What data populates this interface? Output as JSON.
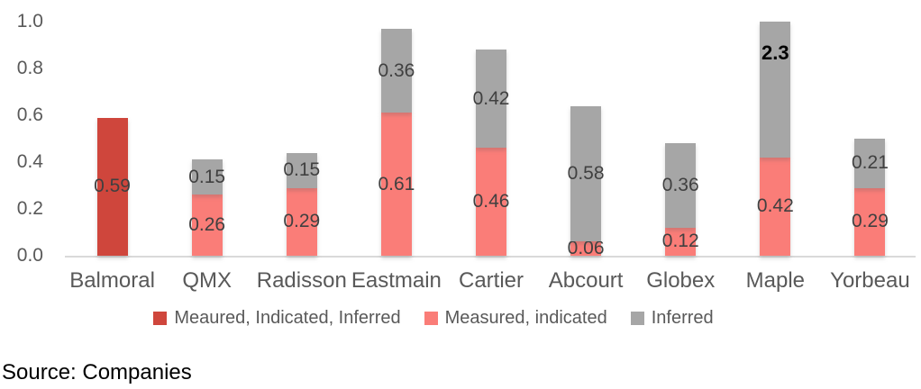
{
  "chart_data": {
    "type": "bar",
    "stacked": true,
    "title": "",
    "xlabel": "",
    "ylabel": "",
    "ylim": [
      0,
      1.0
    ],
    "yticks": [
      "1.0",
      "0.8",
      "0.6",
      "0.4",
      "0.2",
      "0.0"
    ],
    "grid": false,
    "legend_position": "bottom",
    "categories": [
      "Balmoral",
      "QMX",
      "Radisson",
      "Eastmain",
      "Cartier",
      "Abcourt",
      "Globex",
      "Maple",
      "Yorbeau"
    ],
    "series": [
      {
        "name": "Meaured, Indicated, Inferred",
        "color": "#cf463c",
        "values": [
          0.59,
          null,
          null,
          null,
          null,
          null,
          null,
          null,
          null
        ],
        "labels": [
          "0.59",
          null,
          null,
          null,
          null,
          null,
          null,
          null,
          null
        ]
      },
      {
        "name": "Measured, indicated",
        "color": "#fa7d78",
        "values": [
          null,
          0.26,
          0.29,
          0.61,
          0.46,
          0.06,
          0.12,
          0.42,
          0.29
        ],
        "labels": [
          null,
          "0.26",
          "0.29",
          "0.61",
          "0.46",
          "0.06",
          "0.12",
          "0.42",
          "0.29"
        ]
      },
      {
        "name": "Inferred",
        "color": "#a6a6a6",
        "values": [
          null,
          0.15,
          0.15,
          0.36,
          0.42,
          0.58,
          0.36,
          2.3,
          0.21
        ],
        "labels": [
          null,
          "0.15",
          "0.15",
          "0.36",
          "0.42",
          "0.58",
          "0.36",
          "2.3",
          "0.21"
        ]
      }
    ],
    "annotations": "Maple Inferred value 2.3 exceeds axis max; bar clipped at 1.0 and its label shown bold"
  },
  "colors": {
    "axis_line": "#d9d9d9",
    "tick_text": "#595959",
    "data_label": "#404040"
  },
  "source_note": "Source: Companies"
}
